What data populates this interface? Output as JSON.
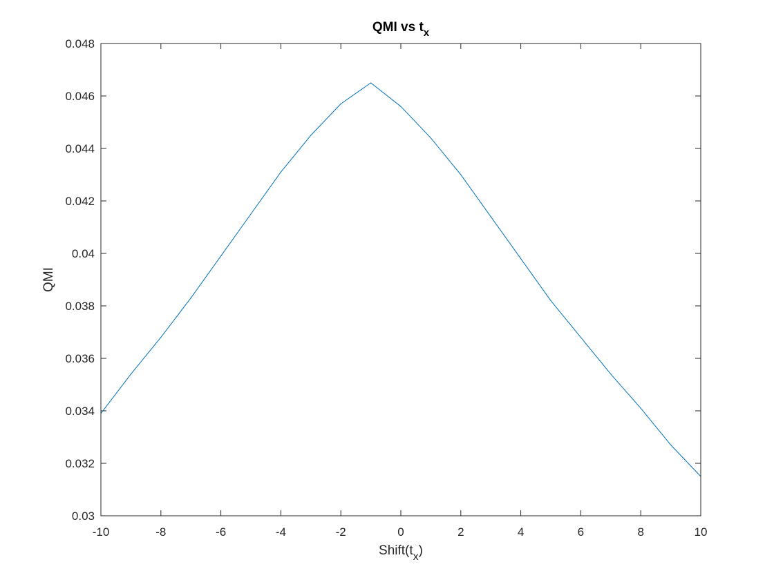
{
  "chart_data": {
    "type": "line",
    "title": {
      "main": "QMI vs t",
      "subscript": "x"
    },
    "xlabel": {
      "main": "Shift(t",
      "subscript": "x",
      "suffix": ")"
    },
    "ylabel": "QMI",
    "xlim": [
      -10,
      10
    ],
    "ylim": [
      0.03,
      0.048
    ],
    "xticks": [
      -10,
      -8,
      -6,
      -4,
      -2,
      0,
      2,
      4,
      6,
      8,
      10
    ],
    "xtick_labels": [
      "-10",
      "-8",
      "-6",
      "-4",
      "-2",
      "0",
      "2",
      "4",
      "6",
      "8",
      "10"
    ],
    "yticks": [
      0.03,
      0.032,
      0.034,
      0.036,
      0.038,
      0.04,
      0.042,
      0.044,
      0.046,
      0.048
    ],
    "ytick_labels": [
      "0.03",
      "0.032",
      "0.034",
      "0.036",
      "0.038",
      "0.04",
      "0.042",
      "0.044",
      "0.046",
      "0.048"
    ],
    "grid": false,
    "box": true,
    "series": [
      {
        "color": "#0072bd",
        "x": [
          -10,
          -9,
          -8,
          -7,
          -6,
          -5,
          -4,
          -3,
          -2,
          -1,
          0,
          1,
          2,
          3,
          4,
          5,
          6,
          7,
          8,
          9,
          10
        ],
        "y": [
          0.0339,
          0.0354,
          0.0368,
          0.0383,
          0.0399,
          0.0415,
          0.0431,
          0.0445,
          0.0457,
          0.0465,
          0.0456,
          0.0444,
          0.043,
          0.0414,
          0.0398,
          0.0382,
          0.0368,
          0.0354,
          0.0341,
          0.0327,
          0.0315
        ]
      }
    ]
  }
}
